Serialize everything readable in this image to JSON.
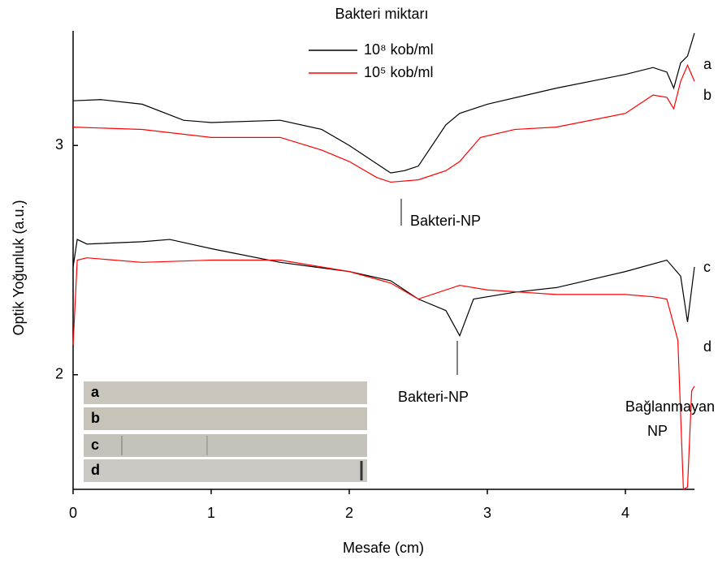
{
  "chart_data": {
    "type": "line",
    "legend_title": "Bakteri miktarı",
    "xlabel": "Mesafe (cm)",
    "ylabel": "Optik Yoğunluk (a.u.)",
    "xlim": [
      0,
      4.5
    ],
    "xticks": [
      0,
      1,
      2,
      3,
      4
    ],
    "ylim": [
      1.5,
      3.5
    ],
    "yticks": [
      2,
      3
    ],
    "legend": "upper center",
    "series": [
      {
        "name": "10⁸ kob/ml",
        "color": "#000000",
        "x": [
          0,
          0.2,
          0.5,
          0.8,
          1.0,
          1.5,
          1.8,
          2.0,
          2.2,
          2.3,
          2.4,
          2.5,
          2.6,
          2.7,
          2.8,
          3.0,
          3.5,
          4.0,
          4.2,
          4.3,
          4.35,
          4.4,
          4.45,
          4.5
        ],
        "values": [
          3.195,
          3.2,
          3.18,
          3.11,
          3.1,
          3.11,
          3.07,
          3.0,
          2.92,
          2.88,
          2.89,
          2.91,
          3.0,
          3.09,
          3.14,
          3.18,
          3.25,
          3.31,
          3.34,
          3.32,
          3.25,
          3.36,
          3.39,
          3.49
        ]
      },
      {
        "name": "10⁵ kob/ml",
        "color": "#ff0000",
        "x": [
          0,
          0.5,
          1.0,
          1.5,
          1.8,
          2.0,
          2.2,
          2.3,
          2.5,
          2.7,
          2.8,
          2.95,
          3.2,
          3.5,
          4.0,
          4.2,
          4.3,
          4.35,
          4.4,
          4.45,
          4.5
        ],
        "values": [
          3.08,
          3.07,
          3.035,
          3.035,
          2.98,
          2.93,
          2.86,
          2.84,
          2.85,
          2.89,
          2.93,
          3.035,
          3.07,
          3.08,
          3.14,
          3.22,
          3.21,
          3.16,
          3.28,
          3.35,
          3.28
        ]
      },
      {
        "color": "#000000",
        "x": [
          0,
          0.03,
          0.1,
          0.5,
          0.7,
          1.0,
          1.5,
          2.0,
          2.3,
          2.5,
          2.7,
          2.8,
          2.9,
          3.2,
          3.5,
          4.0,
          4.3,
          4.4,
          4.45,
          4.5
        ],
        "values": [
          2.47,
          2.59,
          2.57,
          2.58,
          2.59,
          2.55,
          2.49,
          2.45,
          2.41,
          2.33,
          2.28,
          2.17,
          2.33,
          2.36,
          2.38,
          2.45,
          2.5,
          2.43,
          2.23,
          2.47
        ]
      },
      {
        "color": "#ff0000",
        "x": [
          0,
          0.03,
          0.1,
          0.5,
          1.0,
          1.5,
          2.0,
          2.3,
          2.5,
          2.8,
          3.0,
          3.5,
          4.0,
          4.2,
          4.3,
          4.38,
          4.42,
          4.45,
          4.48,
          4.5
        ],
        "values": [
          2.13,
          2.5,
          2.51,
          2.49,
          2.5,
          2.5,
          2.45,
          2.4,
          2.33,
          2.39,
          2.37,
          2.35,
          2.35,
          2.34,
          2.33,
          2.15,
          1.5,
          1.51,
          1.93,
          1.95
        ]
      }
    ],
    "annotations": [
      "a",
      "b",
      "c",
      "d",
      "Bakteri-NP",
      "Bakteri-NP",
      "Bağlanmayan",
      "NP"
    ],
    "inset_labels": [
      "a",
      "b",
      "c",
      "d"
    ]
  }
}
